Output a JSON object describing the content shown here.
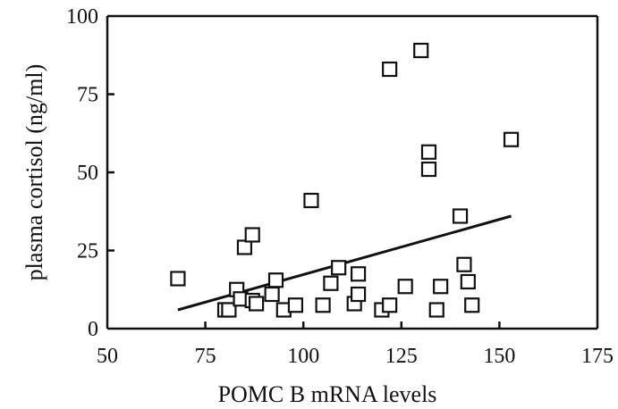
{
  "chart_data": {
    "type": "scatter",
    "xlabel": "POMC B mRNA levels",
    "ylabel": "plasma cortisol (ng/ml)",
    "xlim": [
      50,
      175
    ],
    "ylim": [
      0,
      100
    ],
    "x_ticks": [
      "50",
      "75",
      "100",
      "125",
      "150",
      "175"
    ],
    "y_ticks": [
      "0",
      "25",
      "50",
      "75",
      "100"
    ],
    "grid": false,
    "marker": "open-square",
    "points": [
      {
        "x": 68,
        "y": 16
      },
      {
        "x": 80,
        "y": 6
      },
      {
        "x": 81,
        "y": 6
      },
      {
        "x": 83,
        "y": 12.5
      },
      {
        "x": 84,
        "y": 9.5
      },
      {
        "x": 85,
        "y": 26
      },
      {
        "x": 87,
        "y": 30
      },
      {
        "x": 87,
        "y": 9
      },
      {
        "x": 88,
        "y": 8
      },
      {
        "x": 92,
        "y": 11
      },
      {
        "x": 93,
        "y": 15.5
      },
      {
        "x": 95,
        "y": 6
      },
      {
        "x": 98,
        "y": 7.5
      },
      {
        "x": 102,
        "y": 41
      },
      {
        "x": 105,
        "y": 7.5
      },
      {
        "x": 107,
        "y": 14.5
      },
      {
        "x": 109,
        "y": 19.5
      },
      {
        "x": 113,
        "y": 8
      },
      {
        "x": 114,
        "y": 17.5
      },
      {
        "x": 114,
        "y": 11
      },
      {
        "x": 120,
        "y": 6
      },
      {
        "x": 122,
        "y": 7.5
      },
      {
        "x": 122,
        "y": 83
      },
      {
        "x": 126,
        "y": 13.5
      },
      {
        "x": 130,
        "y": 89
      },
      {
        "x": 132,
        "y": 56.5
      },
      {
        "x": 132,
        "y": 51
      },
      {
        "x": 134,
        "y": 6
      },
      {
        "x": 135,
        "y": 13.5
      },
      {
        "x": 140,
        "y": 36
      },
      {
        "x": 141,
        "y": 20.5
      },
      {
        "x": 142,
        "y": 15
      },
      {
        "x": 143,
        "y": 7.5
      },
      {
        "x": 153,
        "y": 60.5
      }
    ],
    "trendline": {
      "x": [
        68,
        153
      ],
      "y": [
        6,
        36
      ]
    }
  }
}
